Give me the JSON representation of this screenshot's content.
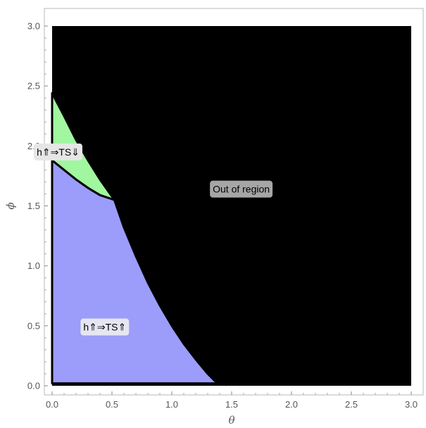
{
  "chart_data": {
    "type": "region",
    "title": "",
    "xlabel": "θ",
    "ylabel": "ϕ",
    "xlim": [
      0,
      3
    ],
    "ylim": [
      0,
      3
    ],
    "xticks": [
      "0.0",
      "0.5",
      "1.0",
      "1.5",
      "2.0",
      "2.5",
      "3.0"
    ],
    "yticks": [
      "0.0",
      "0.5",
      "1.0",
      "1.5",
      "2.0",
      "2.5",
      "3.0"
    ],
    "colors": {
      "out_of_region": "#000000",
      "green_region": "#a0f7a0",
      "blue_region": "#9c9cfb"
    },
    "regions": [
      {
        "label": "Out of region",
        "label_at": [
          1.58,
          1.64
        ],
        "label_text_color": "#000000",
        "label_bg": "#a6a6a6"
      },
      {
        "label": "h⇑⇒TS⇓",
        "boundary": [
          [
            0,
            2.44
          ],
          [
            0.1,
            2.25
          ],
          [
            0.2,
            2.05
          ],
          [
            0.3,
            1.88
          ],
          [
            0.4,
            1.72
          ],
          [
            0.52,
            1.55
          ],
          [
            0.4,
            1.59
          ],
          [
            0.3,
            1.65
          ],
          [
            0.2,
            1.72
          ],
          [
            0.1,
            1.8
          ],
          [
            0,
            1.88
          ]
        ],
        "label_at": [
          0.05,
          1.95
        ],
        "label_text_color": "#000000",
        "label_bg": "#e6e6e6"
      },
      {
        "label": "h⇑⇒TS⇑",
        "boundary": [
          [
            0,
            1.88
          ],
          [
            0.1,
            1.8
          ],
          [
            0.2,
            1.72
          ],
          [
            0.3,
            1.65
          ],
          [
            0.4,
            1.59
          ],
          [
            0.52,
            1.55
          ],
          [
            0.6,
            1.32
          ],
          [
            0.7,
            1.08
          ],
          [
            0.8,
            0.86
          ],
          [
            0.9,
            0.67
          ],
          [
            1.0,
            0.5
          ],
          [
            1.1,
            0.35
          ],
          [
            1.2,
            0.22
          ],
          [
            1.3,
            0.1
          ],
          [
            1.38,
            0.02
          ],
          [
            0,
            0.02
          ]
        ],
        "label_at": [
          0.44,
          0.49
        ],
        "label_text_color": "#000000",
        "label_bg": "#e6e6f3"
      }
    ]
  }
}
